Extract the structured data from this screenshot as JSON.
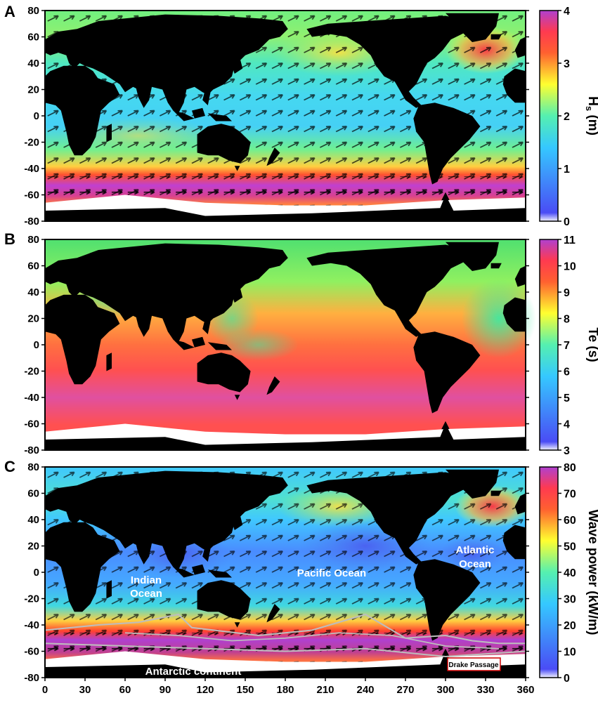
{
  "panels": [
    {
      "letter": "A",
      "colorbar": {
        "title_main": "H",
        "title_sub": "s",
        "title_unit": " (m)",
        "ticks": [
          "0",
          "1",
          "2",
          "3",
          "4"
        ],
        "range": [
          0,
          4
        ]
      }
    },
    {
      "letter": "B",
      "colorbar": {
        "title_main": "Te",
        "title_sub": "",
        "title_unit": " (s)",
        "ticks": [
          "3",
          "4",
          "5",
          "6",
          "7",
          "8",
          "9",
          "10",
          "11"
        ],
        "range": [
          3,
          11
        ]
      }
    },
    {
      "letter": "C",
      "colorbar": {
        "title_main": "Wave power (kW/m)",
        "title_sub": "",
        "title_unit": "",
        "ticks": [
          "0",
          "10",
          "20",
          "30",
          "40",
          "50",
          "60",
          "70",
          "80"
        ],
        "range": [
          0,
          80
        ]
      },
      "labels": {
        "indian_1": "Indian",
        "indian_2": "Ocean",
        "pacific": "Pacific Ocean",
        "atlantic_1": "Atlantic",
        "atlantic_2": "Ocean",
        "antarctic": "Antarctic continent",
        "drake": "Drake Passage"
      }
    }
  ],
  "axes": {
    "y_ticks": [
      "80",
      "60",
      "40",
      "20",
      "0",
      "-20",
      "-40",
      "-60",
      "-80"
    ],
    "x_ticks": [
      "0",
      "30",
      "60",
      "90",
      "120",
      "150",
      "180",
      "210",
      "240",
      "270",
      "300",
      "330",
      "360"
    ],
    "lon_range": [
      0,
      360
    ],
    "lat_range": [
      -80,
      80
    ]
  },
  "colors": {
    "land": "#000000",
    "ice": "#ffffff",
    "colormap": [
      "#f2f2ff",
      "#4a4cf5",
      "#35c8ff",
      "#55f0b0",
      "#ffff30",
      "#ff6030",
      "#ff3a50",
      "#b040d0"
    ],
    "path_line": "#bdbdbd",
    "drake_box": "#cc0000"
  }
}
